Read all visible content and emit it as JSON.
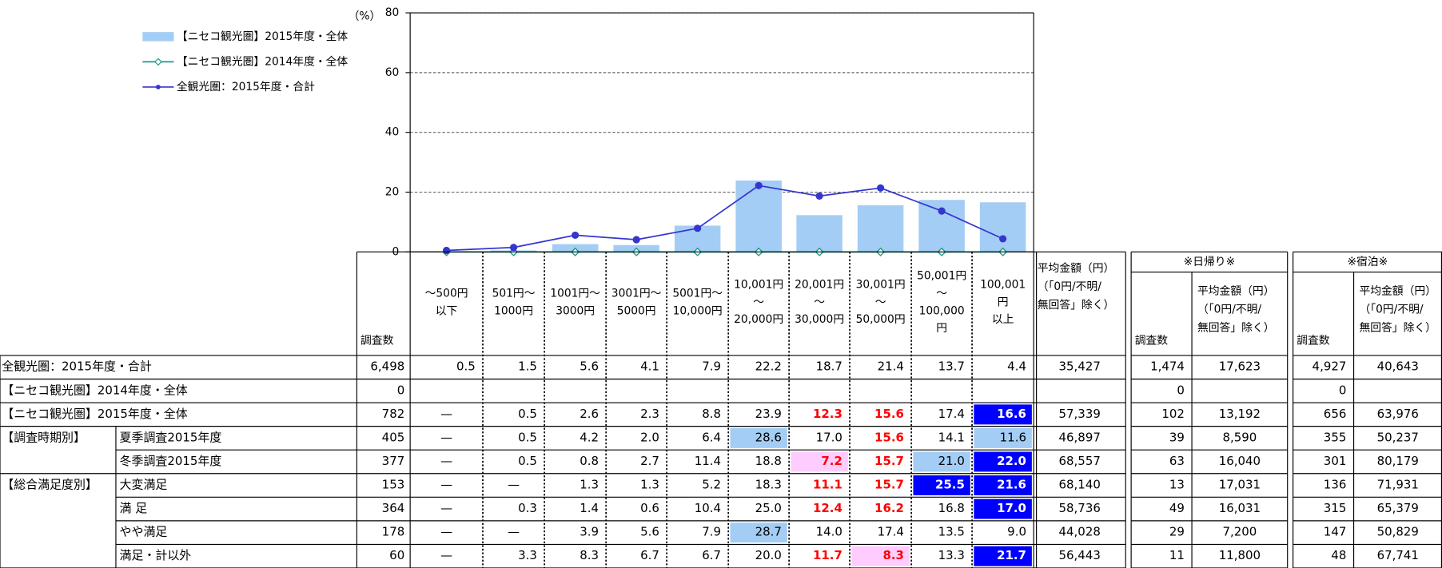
{
  "chart_data": {
    "type": "bar",
    "y_label": "（%）",
    "categories": [
      [
        "～500円",
        "以下"
      ],
      [
        "501円～",
        "1000円"
      ],
      [
        "1001円～",
        "3000円"
      ],
      [
        "3001円～",
        "5000円"
      ],
      [
        "5001円～",
        "10,000円"
      ],
      [
        "10,001円",
        "～",
        "20,000円"
      ],
      [
        "20,001円",
        "～",
        "30,000円"
      ],
      [
        "30,001円",
        "～",
        "50,000円"
      ],
      [
        "50,001円",
        "～",
        "100,000",
        "円"
      ],
      [
        "100,001",
        "円",
        "以上"
      ]
    ],
    "series": [
      {
        "name": "【ニセコ観光圏】2015年度・全体",
        "kind": "bar",
        "color": "#a3cdf4",
        "values": [
          null,
          0.5,
          2.6,
          2.3,
          8.8,
          23.9,
          12.3,
          15.6,
          17.4,
          16.6
        ]
      },
      {
        "name": "【ニセコ観光圏】2014年度・全体",
        "kind": "line",
        "marker": "diamond",
        "color": "#1a9a8a",
        "values": [
          0,
          0,
          0,
          0,
          0,
          0,
          0,
          0,
          0,
          0
        ]
      },
      {
        "name": "全観光圏：2015年度・合計",
        "kind": "line",
        "marker": "circle",
        "color": "#3535d0",
        "values": [
          0.5,
          1.5,
          5.6,
          4.1,
          7.9,
          22.2,
          18.7,
          21.4,
          13.7,
          4.4
        ]
      }
    ],
    "legend_labels": [
      "【ニセコ観光圏】2015年度・全体",
      "【ニセコ観光圏】2014年度・全体",
      "全観光圏：2015年度・合計"
    ],
    "ylim": [
      0,
      80
    ],
    "yticks": [
      0,
      20,
      40,
      60,
      80
    ],
    "grid": true,
    "legend": "upper left"
  },
  "table": {
    "header": {
      "n": "調査数",
      "avg": [
        "平均金額（円）",
        "（「0円/不明/",
        "無回答」除く）"
      ],
      "day": "※日帰り※",
      "stay": "※宿泊※"
    },
    "styles": {
      "light": {
        "fill": "#a3cdf4"
      },
      "pink": {
        "fill": "#ffccff",
        "color": "#ff0000",
        "bold": true
      },
      "red": {
        "color": "#ff0000",
        "bold": true
      },
      "blue": {
        "fill": "#0000ff",
        "color": "#ffffff",
        "bold": true
      }
    },
    "rows": [
      {
        "label": "全観光圏：2015年度・合計",
        "n": "6,498",
        "cells": [
          "0.5",
          "1.5",
          "5.6",
          "4.1",
          "7.9",
          "22.2",
          "18.7",
          "21.4",
          "13.7",
          "4.4"
        ],
        "avg": "35,427",
        "day_n": "1,474",
        "day_avg": "17,623",
        "stay_n": "4,927",
        "stay_avg": "40,643"
      },
      {
        "label": "【ニセコ観光圏】2014年度・全体",
        "n": "0",
        "cells": [
          null,
          null,
          null,
          null,
          null,
          null,
          null,
          null,
          null,
          null
        ],
        "avg": null,
        "day_n": "0",
        "day_avg": null,
        "stay_n": "0",
        "stay_avg": null
      },
      {
        "label": "【ニセコ観光圏】2015年度・全体",
        "n": "782",
        "cells": [
          "—",
          "0.5",
          "2.6",
          "2.3",
          "8.8",
          "23.9",
          "12.3",
          "15.6",
          "17.4",
          "16.6"
        ],
        "avg": "57,339",
        "day_n": "102",
        "day_avg": "13,192",
        "stay_n": "656",
        "stay_avg": "63,976",
        "highlights": {
          "6": "red",
          "7": "red",
          "9": "blue"
        }
      },
      {
        "group": "【調査時期別】",
        "label": "夏季調査2015年度",
        "n": "405",
        "cells": [
          "—",
          "0.5",
          "4.2",
          "2.0",
          "6.4",
          "28.6",
          "17.0",
          "15.6",
          "14.1",
          "11.6"
        ],
        "avg": "46,897",
        "day_n": "39",
        "day_avg": "8,590",
        "stay_n": "355",
        "stay_avg": "50,237",
        "highlights": {
          "5": "light",
          "7": "red",
          "9": "light"
        }
      },
      {
        "label": "冬季調査2015年度",
        "n": "377",
        "cells": [
          "—",
          "0.5",
          "0.8",
          "2.7",
          "11.4",
          "18.8",
          "7.2",
          "15.7",
          "21.0",
          "22.0"
        ],
        "avg": "68,557",
        "day_n": "63",
        "day_avg": "16,040",
        "stay_n": "301",
        "stay_avg": "80,179",
        "highlights": {
          "6": "pink",
          "7": "red",
          "8": "light",
          "9": "blue"
        }
      },
      {
        "group": "【総合満足度別】",
        "label": "大変満足",
        "n": "153",
        "cells": [
          "—",
          "—",
          "1.3",
          "1.3",
          "5.2",
          "18.3",
          "11.1",
          "15.7",
          "25.5",
          "21.6"
        ],
        "avg": "68,140",
        "day_n": "13",
        "day_avg": "17,031",
        "stay_n": "136",
        "stay_avg": "71,931",
        "highlights": {
          "6": "red",
          "7": "red",
          "8": "blue",
          "9": "blue"
        }
      },
      {
        "label": "満 足",
        "n": "364",
        "cells": [
          "—",
          "0.3",
          "1.4",
          "0.6",
          "10.4",
          "25.0",
          "12.4",
          "16.2",
          "16.8",
          "17.0"
        ],
        "avg": "58,736",
        "day_n": "49",
        "day_avg": "16,031",
        "stay_n": "315",
        "stay_avg": "65,379",
        "highlights": {
          "6": "red",
          "7": "red",
          "9": "blue"
        }
      },
      {
        "label": "やや満足",
        "n": "178",
        "cells": [
          "—",
          "—",
          "3.9",
          "5.6",
          "7.9",
          "28.7",
          "14.0",
          "17.4",
          "13.5",
          "9.0"
        ],
        "avg": "44,028",
        "day_n": "29",
        "day_avg": "7,200",
        "stay_n": "147",
        "stay_avg": "50,829",
        "highlights": {
          "5": "light"
        }
      },
      {
        "label": "満足・計以外",
        "n": "60",
        "cells": [
          "—",
          "3.3",
          "8.3",
          "6.7",
          "6.7",
          "20.0",
          "11.7",
          "8.3",
          "13.3",
          "21.7"
        ],
        "avg": "56,443",
        "day_n": "11",
        "day_avg": "11,800",
        "stay_n": "48",
        "stay_avg": "67,741",
        "highlights": {
          "6": "red",
          "7": "pink",
          "9": "blue"
        }
      }
    ]
  }
}
